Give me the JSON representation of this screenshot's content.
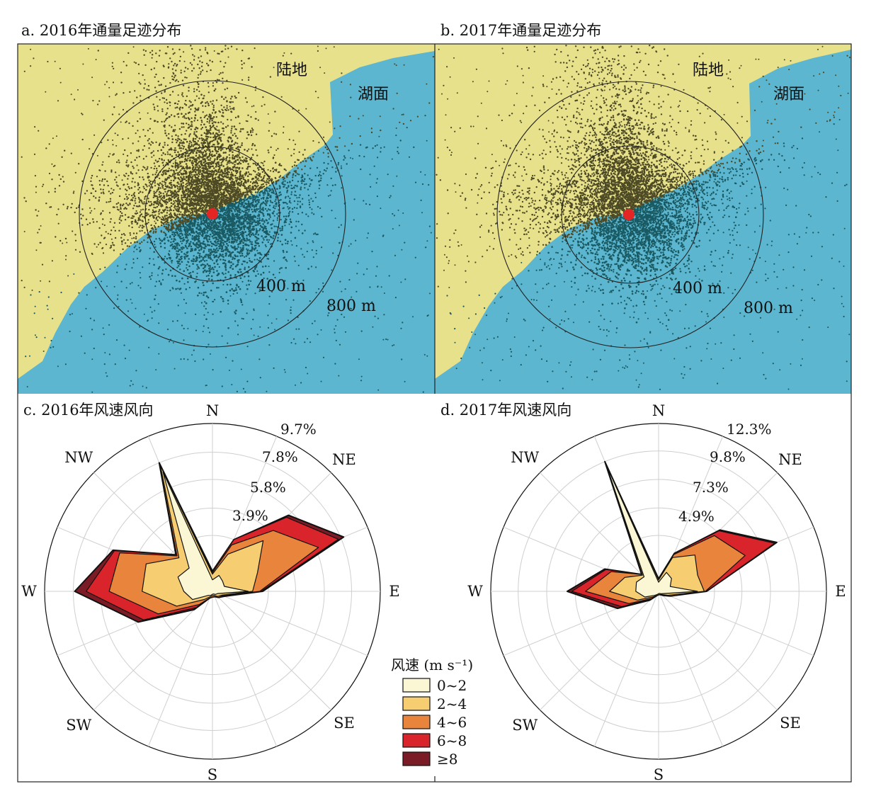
{
  "panels": {
    "a_title": "a. 2016年通量足迹分布",
    "b_title": "b. 2017年通量足迹分布",
    "c_title": "c. 2016年风速风向",
    "d_title": "d. 2017年风速风向"
  },
  "map_labels": {
    "land": "陆地",
    "lake": "湖面",
    "r400": "400 m",
    "r800": "800 m"
  },
  "directions": [
    "N",
    "NE",
    "E",
    "SE",
    "S",
    "SW",
    "W",
    "NW"
  ],
  "colors": {
    "land": "#e8e18c",
    "lake": "#5cb6cf",
    "dot_land": "#4d4a25",
    "dot_lake": "#1a5a63",
    "tower": "#e52424",
    "speed_bins": [
      "#fbf7d4",
      "#f6cd71",
      "#e8843b",
      "#d8242a",
      "#7b1b25"
    ]
  },
  "legend": {
    "title": "风速 (m s⁻¹)",
    "items": [
      "0~2",
      "2~4",
      "4~6",
      "6~8",
      "≥8"
    ]
  },
  "chart_data": [
    {
      "type": "footprint-map",
      "title": "a. 2016年通量足迹分布",
      "rings_m": [
        400,
        800
      ]
    },
    {
      "type": "footprint-map",
      "title": "b. 2017年通量足迹分布",
      "rings_m": [
        400,
        800
      ]
    },
    {
      "type": "wind-rose",
      "title": "c. 2016年风速风向",
      "ring_labels": [
        "3.9%",
        "5.8%",
        "7.8%",
        "9.7%"
      ],
      "ring_values": [
        3.9,
        5.8,
        7.8,
        9.7
      ],
      "r_max": 11.7,
      "speed_bins": [
        "0~2",
        "2~4",
        "4~6",
        "6~8",
        "≥8"
      ],
      "direction_deg": [
        0,
        22.5,
        45,
        67.5,
        90,
        112.5,
        135,
        157.5,
        180,
        202.5,
        225,
        247.5,
        270,
        292.5,
        315,
        337.5
      ],
      "cumulative_percent": [
        [
          0.8,
          1.2,
          1.0,
          0.9,
          2.5,
          0.4,
          0.3,
          0.2,
          0.2,
          0.3,
          0.4,
          1.5,
          2.0,
          2.6,
          2.3,
          9.0
        ],
        [
          1.2,
          2.8,
          5.0,
          3.4,
          2.8,
          0.7,
          0.5,
          0.3,
          0.3,
          0.4,
          0.8,
          2.7,
          4.9,
          5.0,
          3.3,
          9.5
        ],
        [
          1.3,
          3.5,
          6.0,
          8.0,
          3.3,
          0.8,
          0.6,
          0.4,
          0.4,
          0.5,
          1.3,
          4.1,
          7.2,
          7.0,
          3.5,
          9.7
        ],
        [
          1.4,
          3.9,
          7.3,
          9.5,
          3.4,
          0.9,
          0.6,
          0.4,
          0.4,
          0.5,
          1.6,
          5.2,
          8.8,
          7.4,
          3.6,
          9.7
        ],
        [
          1.4,
          3.9,
          7.5,
          9.9,
          3.5,
          0.9,
          0.6,
          0.4,
          0.4,
          0.5,
          1.8,
          5.6,
          9.6,
          7.5,
          3.6,
          9.7
        ]
      ]
    },
    {
      "type": "wind-rose",
      "title": "d. 2017年风速风向",
      "ring_labels": [
        "4.9%",
        "7.3%",
        "9.8%",
        "12.3%"
      ],
      "ring_values": [
        4.9,
        7.3,
        9.8,
        12.3
      ],
      "r_max": 14.7,
      "speed_bins": [
        "0~2",
        "2~4",
        "4~6",
        "6~8",
        "≥8"
      ],
      "direction_deg": [
        0,
        22.5,
        45,
        67.5,
        90,
        112.5,
        135,
        157.5,
        180,
        202.5,
        225,
        247.5,
        270,
        292.5,
        315,
        337.5
      ],
      "cumulative_percent": [
        [
          0.8,
          1.8,
          1.6,
          1.1,
          3.4,
          0.5,
          0.3,
          0.2,
          0.2,
          0.3,
          0.5,
          1.3,
          2.0,
          2.1,
          1.8,
          11.9
        ],
        [
          1.0,
          3.2,
          4.5,
          3.7,
          4.0,
          0.9,
          0.4,
          0.3,
          0.3,
          0.4,
          0.7,
          2.0,
          4.3,
          3.2,
          2.0,
          12.0
        ],
        [
          1.1,
          3.5,
          6.9,
          8.2,
          4.1,
          1.1,
          0.5,
          0.3,
          0.3,
          0.4,
          0.9,
          2.8,
          6.4,
          4.5,
          2.1,
          12.1
        ],
        [
          1.1,
          3.6,
          7.5,
          11.0,
          4.2,
          1.1,
          0.5,
          0.3,
          0.3,
          0.4,
          1.0,
          3.5,
          7.6,
          5.0,
          2.1,
          12.2
        ],
        [
          1.1,
          3.6,
          7.6,
          11.2,
          4.2,
          1.1,
          0.5,
          0.3,
          0.3,
          0.4,
          1.1,
          3.9,
          8.0,
          5.1,
          2.1,
          12.3
        ]
      ]
    }
  ]
}
